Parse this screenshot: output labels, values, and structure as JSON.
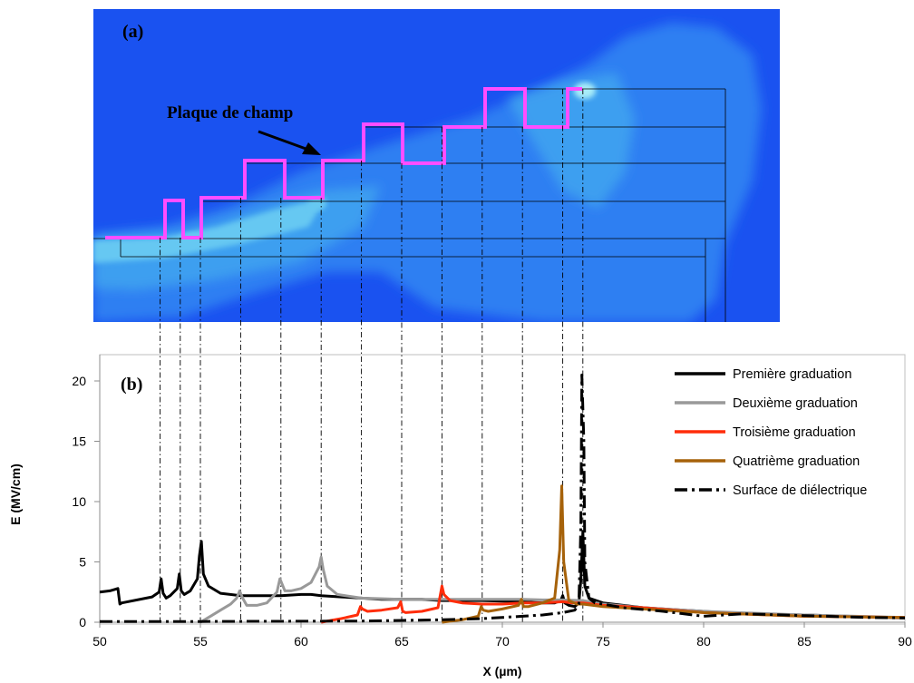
{
  "panel_a": {
    "label": "(a)",
    "annotation": "Plaque de champ",
    "colors": {
      "background": "#1a52f0",
      "field_low": "#2f7ff2",
      "field_mid": "#3c9ff0",
      "field_high": "#66c8f2",
      "field_peak": "#a8ecf8",
      "field_plate": "#ff4dff",
      "mesh_lines": "#000000"
    }
  },
  "panel_b": {
    "label": "(b)"
  },
  "guides_x": [
    53,
    54,
    55,
    57,
    59,
    61,
    63,
    65,
    67,
    69,
    71,
    73,
    74
  ],
  "chart_data": {
    "type": "line",
    "xlabel": "X (µm)",
    "ylabel": "E (MV/cm)",
    "xlim": [
      50,
      90
    ],
    "ylim": [
      0,
      21
    ],
    "xticks": [
      50,
      55,
      60,
      65,
      70,
      75,
      80,
      85,
      90
    ],
    "yticks": [
      0,
      5,
      10,
      15,
      20
    ],
    "grid": false,
    "legend": "top-right",
    "series": [
      {
        "name": "Première graduation",
        "color": "#000000",
        "dash": "solid",
        "x": [
          50,
          50.5,
          50.9,
          51,
          51.1,
          52.6,
          52.95,
          53.05,
          53.15,
          53.3,
          53.5,
          53.85,
          53.95,
          54.05,
          54.2,
          54.5,
          54.85,
          54.95,
          55.05,
          55.15,
          55.4,
          56,
          57,
          58,
          59,
          60,
          60.5,
          61,
          62,
          63,
          64,
          65,
          66,
          67,
          68,
          69,
          70,
          71,
          72,
          72.6,
          72.9,
          73,
          73.1,
          73.3,
          73.6,
          73.8,
          73.9,
          74,
          74.1,
          74.3,
          75,
          76,
          77,
          78,
          80,
          82,
          85,
          88,
          90
        ],
        "y": [
          2.5,
          2.6,
          2.8,
          1.5,
          1.6,
          2.1,
          2.5,
          3.6,
          2.4,
          2.0,
          2.2,
          2.8,
          4.0,
          2.6,
          2.3,
          2.6,
          3.6,
          5.5,
          6.7,
          4.0,
          3.0,
          2.4,
          2.2,
          2.2,
          2.2,
          2.3,
          2.3,
          2.2,
          2.1,
          2.0,
          1.9,
          1.9,
          1.9,
          1.8,
          1.8,
          1.8,
          1.75,
          1.7,
          1.6,
          1.6,
          1.8,
          2.2,
          1.6,
          1.4,
          1.3,
          1.6,
          3.5,
          7.5,
          3.0,
          2.0,
          1.6,
          1.4,
          1.2,
          1.1,
          0.9,
          0.7,
          0.6,
          0.45,
          0.35
        ]
      },
      {
        "name": "Deuxième graduation",
        "color": "#999999",
        "dash": "solid",
        "x": [
          55,
          55.5,
          56,
          56.5,
          56.8,
          56.95,
          57.1,
          57.3,
          57.8,
          58.3,
          58.8,
          58.95,
          59.05,
          59.2,
          59.5,
          60,
          60.5,
          60.9,
          61,
          61.1,
          61.3,
          61.8,
          63,
          65,
          67,
          69,
          71,
          72,
          73,
          74,
          75,
          77,
          80,
          85,
          90
        ],
        "y": [
          0,
          0.5,
          1.0,
          1.5,
          2.0,
          2.6,
          2.0,
          1.4,
          1.4,
          1.6,
          2.5,
          3.6,
          3.2,
          2.6,
          2.6,
          2.8,
          3.3,
          4.6,
          5.4,
          4.4,
          3.0,
          2.3,
          2.0,
          1.9,
          1.9,
          1.9,
          1.9,
          1.85,
          1.85,
          1.8,
          1.5,
          1.2,
          0.9,
          0.6,
          0.4
        ]
      },
      {
        "name": "Troisième graduation",
        "color": "#ff2d0a",
        "dash": "solid",
        "x": [
          61,
          62,
          62.8,
          62.95,
          63.05,
          63.3,
          64,
          64.8,
          64.95,
          65.05,
          65.2,
          66,
          66.8,
          67,
          67.1,
          67.4,
          68,
          69,
          70,
          71,
          72,
          73,
          73.5,
          74,
          75,
          77,
          80,
          85,
          90
        ],
        "y": [
          0,
          0.3,
          0.6,
          1.3,
          1.1,
          0.9,
          1.0,
          1.2,
          1.7,
          0.9,
          0.8,
          0.9,
          1.2,
          3.0,
          2.3,
          1.8,
          1.6,
          1.5,
          1.5,
          1.6,
          1.6,
          1.7,
          1.6,
          1.6,
          1.4,
          1.2,
          0.8,
          0.5,
          0.4
        ]
      },
      {
        "name": "Quatrième graduation",
        "color": "#a6620a",
        "dash": "solid",
        "x": [
          67,
          68,
          68.8,
          68.95,
          69.05,
          69.3,
          70,
          70.8,
          70.95,
          71.05,
          71.3,
          72,
          72.6,
          72.85,
          72.95,
          73.05,
          73.3,
          73.7,
          74,
          75,
          77,
          80,
          85,
          90
        ],
        "y": [
          0,
          0.2,
          0.5,
          1.3,
          1.0,
          0.9,
          1.1,
          1.4,
          1.9,
          1.3,
          1.3,
          1.6,
          2.0,
          6.0,
          11.3,
          5.0,
          1.8,
          1.5,
          1.5,
          1.3,
          1.1,
          0.8,
          0.5,
          0.4
        ]
      },
      {
        "name": "Surface de diélectrique",
        "color": "#000000",
        "dash": "dash-dot",
        "x": [
          50,
          55,
          60,
          63,
          65,
          67,
          69,
          70,
          71,
          72,
          73,
          73.6,
          73.8,
          73.9,
          73.95,
          74.05,
          74.1,
          74.3,
          74.6,
          75,
          76,
          78,
          80,
          82,
          85,
          88,
          90
        ],
        "y": [
          0.05,
          0.06,
          0.08,
          0.1,
          0.15,
          0.2,
          0.3,
          0.4,
          0.5,
          0.6,
          0.8,
          1.0,
          1.5,
          8.0,
          20.5,
          15.0,
          5.0,
          2.0,
          1.6,
          1.5,
          1.2,
          0.9,
          0.5,
          0.7,
          0.55,
          0.4,
          0.35
        ]
      }
    ]
  }
}
